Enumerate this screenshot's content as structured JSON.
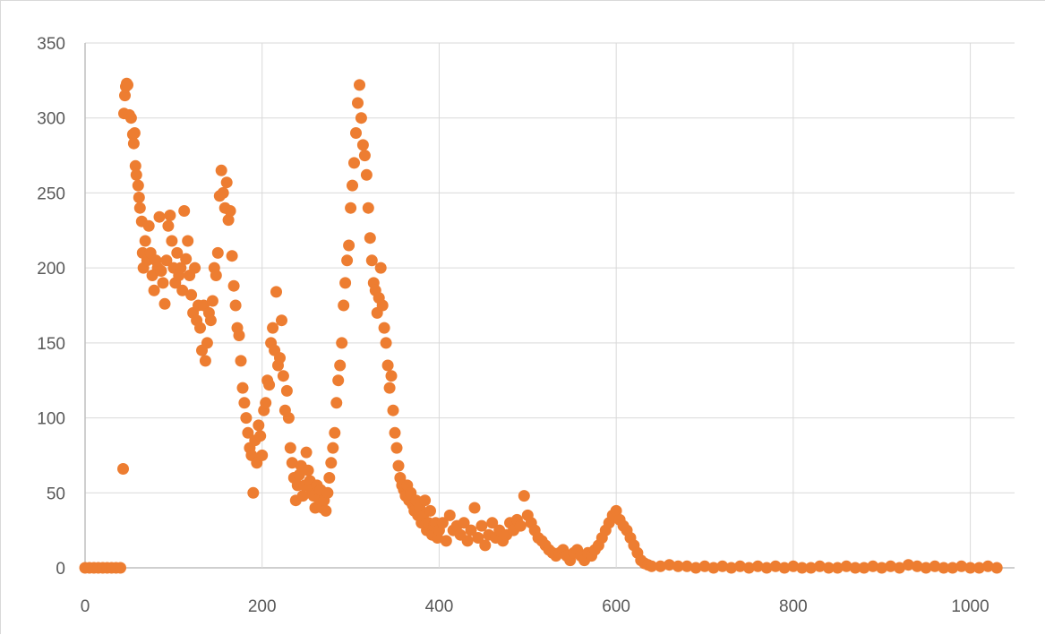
{
  "colors": {
    "marker": "#ED7D31",
    "grid": "#d9d9d9",
    "axis": "#bfbfbf",
    "text": "#595959"
  },
  "chart_data": {
    "type": "scatter",
    "title": "",
    "xlabel": "",
    "ylabel": "",
    "xlim": [
      0,
      1050
    ],
    "ylim": [
      0,
      350
    ],
    "grid": {
      "horizontal": true,
      "vertical": true
    },
    "legend": "none",
    "x_ticks": [
      {
        "value": 0,
        "label": "0"
      },
      {
        "value": 200,
        "label": "200"
      },
      {
        "value": 400,
        "label": "400"
      },
      {
        "value": 600,
        "label": "600"
      },
      {
        "value": 800,
        "label": "800"
      },
      {
        "value": 1000,
        "label": "1000"
      }
    ],
    "y_ticks": [
      {
        "value": 0,
        "label": "0"
      },
      {
        "value": 50,
        "label": "50"
      },
      {
        "value": 100,
        "label": "100"
      },
      {
        "value": 150,
        "label": "150"
      },
      {
        "value": 200,
        "label": "200"
      },
      {
        "value": 250,
        "label": "250"
      },
      {
        "value": 300,
        "label": "300"
      },
      {
        "value": 350,
        "label": "350"
      }
    ],
    "series": [
      {
        "marker_color": "#ED7D31",
        "points": [
          [
            0,
            0
          ],
          [
            5,
            0
          ],
          [
            10,
            0
          ],
          [
            15,
            0
          ],
          [
            20,
            0
          ],
          [
            25,
            0
          ],
          [
            30,
            0
          ],
          [
            35,
            0
          ],
          [
            40,
            0
          ],
          [
            43,
            66
          ],
          [
            44,
            303
          ],
          [
            45,
            315
          ],
          [
            46,
            321
          ],
          [
            47,
            323
          ],
          [
            48,
            322
          ],
          [
            50,
            302
          ],
          [
            52,
            300
          ],
          [
            54,
            289
          ],
          [
            55,
            283
          ],
          [
            56,
            290
          ],
          [
            57,
            268
          ],
          [
            58,
            262
          ],
          [
            60,
            255
          ],
          [
            61,
            247
          ],
          [
            62,
            240
          ],
          [
            64,
            231
          ],
          [
            65,
            210
          ],
          [
            66,
            200
          ],
          [
            68,
            218
          ],
          [
            70,
            205
          ],
          [
            72,
            228
          ],
          [
            74,
            210
          ],
          [
            76,
            195
          ],
          [
            78,
            185
          ],
          [
            80,
            205
          ],
          [
            82,
            200
          ],
          [
            84,
            234
          ],
          [
            86,
            198
          ],
          [
            88,
            190
          ],
          [
            90,
            176
          ],
          [
            92,
            205
          ],
          [
            94,
            228
          ],
          [
            96,
            235
          ],
          [
            98,
            218
          ],
          [
            100,
            200
          ],
          [
            102,
            190
          ],
          [
            104,
            210
          ],
          [
            106,
            195
          ],
          [
            108,
            200
          ],
          [
            110,
            185
          ],
          [
            112,
            238
          ],
          [
            114,
            206
          ],
          [
            116,
            218
          ],
          [
            118,
            195
          ],
          [
            120,
            182
          ],
          [
            122,
            170
          ],
          [
            124,
            200
          ],
          [
            126,
            165
          ],
          [
            128,
            175
          ],
          [
            130,
            160
          ],
          [
            132,
            145
          ],
          [
            134,
            175
          ],
          [
            136,
            138
          ],
          [
            138,
            150
          ],
          [
            140,
            170
          ],
          [
            142,
            165
          ],
          [
            144,
            178
          ],
          [
            146,
            200
          ],
          [
            148,
            195
          ],
          [
            150,
            210
          ],
          [
            152,
            248
          ],
          [
            154,
            265
          ],
          [
            156,
            250
          ],
          [
            158,
            240
          ],
          [
            160,
            257
          ],
          [
            162,
            232
          ],
          [
            164,
            238
          ],
          [
            166,
            208
          ],
          [
            168,
            188
          ],
          [
            170,
            175
          ],
          [
            172,
            160
          ],
          [
            174,
            155
          ],
          [
            176,
            138
          ],
          [
            178,
            120
          ],
          [
            180,
            110
          ],
          [
            182,
            100
          ],
          [
            184,
            90
          ],
          [
            186,
            80
          ],
          [
            188,
            75
          ],
          [
            190,
            50
          ],
          [
            192,
            85
          ],
          [
            194,
            70
          ],
          [
            196,
            95
          ],
          [
            198,
            88
          ],
          [
            200,
            75
          ],
          [
            202,
            105
          ],
          [
            204,
            110
          ],
          [
            206,
            125
          ],
          [
            208,
            122
          ],
          [
            210,
            150
          ],
          [
            212,
            160
          ],
          [
            214,
            145
          ],
          [
            216,
            184
          ],
          [
            218,
            135
          ],
          [
            220,
            140
          ],
          [
            222,
            165
          ],
          [
            224,
            128
          ],
          [
            226,
            105
          ],
          [
            228,
            118
          ],
          [
            230,
            100
          ],
          [
            232,
            80
          ],
          [
            234,
            70
          ],
          [
            236,
            60
          ],
          [
            238,
            45
          ],
          [
            240,
            55
          ],
          [
            242,
            62
          ],
          [
            244,
            68
          ],
          [
            246,
            48
          ],
          [
            248,
            55
          ],
          [
            250,
            77
          ],
          [
            252,
            65
          ],
          [
            254,
            58
          ],
          [
            256,
            52
          ],
          [
            258,
            48
          ],
          [
            260,
            40
          ],
          [
            262,
            55
          ],
          [
            264,
            46
          ],
          [
            266,
            52
          ],
          [
            268,
            40
          ],
          [
            270,
            45
          ],
          [
            272,
            38
          ],
          [
            274,
            50
          ],
          [
            276,
            60
          ],
          [
            278,
            70
          ],
          [
            280,
            80
          ],
          [
            282,
            90
          ],
          [
            284,
            110
          ],
          [
            286,
            125
          ],
          [
            288,
            135
          ],
          [
            290,
            150
          ],
          [
            292,
            175
          ],
          [
            294,
            190
          ],
          [
            296,
            205
          ],
          [
            298,
            215
          ],
          [
            300,
            240
          ],
          [
            302,
            255
          ],
          [
            304,
            270
          ],
          [
            306,
            290
          ],
          [
            308,
            310
          ],
          [
            310,
            322
          ],
          [
            312,
            300
          ],
          [
            314,
            282
          ],
          [
            316,
            275
          ],
          [
            318,
            262
          ],
          [
            320,
            240
          ],
          [
            322,
            220
          ],
          [
            324,
            205
          ],
          [
            326,
            190
          ],
          [
            328,
            185
          ],
          [
            330,
            170
          ],
          [
            332,
            180
          ],
          [
            334,
            200
          ],
          [
            336,
            175
          ],
          [
            338,
            160
          ],
          [
            340,
            150
          ],
          [
            342,
            135
          ],
          [
            344,
            120
          ],
          [
            346,
            128
          ],
          [
            348,
            105
          ],
          [
            350,
            90
          ],
          [
            352,
            80
          ],
          [
            354,
            68
          ],
          [
            356,
            60
          ],
          [
            358,
            55
          ],
          [
            360,
            52
          ],
          [
            362,
            48
          ],
          [
            364,
            55
          ],
          [
            366,
            45
          ],
          [
            368,
            50
          ],
          [
            370,
            42
          ],
          [
            372,
            38
          ],
          [
            374,
            45
          ],
          [
            376,
            35
          ],
          [
            378,
            40
          ],
          [
            380,
            30
          ],
          [
            382,
            35
          ],
          [
            384,
            45
          ],
          [
            386,
            25
          ],
          [
            388,
            30
          ],
          [
            390,
            38
          ],
          [
            392,
            22
          ],
          [
            394,
            28
          ],
          [
            396,
            30
          ],
          [
            398,
            20
          ],
          [
            400,
            25
          ],
          [
            404,
            30
          ],
          [
            408,
            18
          ],
          [
            412,
            35
          ],
          [
            416,
            25
          ],
          [
            420,
            28
          ],
          [
            424,
            22
          ],
          [
            428,
            30
          ],
          [
            432,
            18
          ],
          [
            436,
            25
          ],
          [
            440,
            40
          ],
          [
            444,
            20
          ],
          [
            448,
            28
          ],
          [
            452,
            15
          ],
          [
            456,
            22
          ],
          [
            460,
            30
          ],
          [
            464,
            20
          ],
          [
            468,
            25
          ],
          [
            472,
            18
          ],
          [
            476,
            22
          ],
          [
            480,
            30
          ],
          [
            484,
            25
          ],
          [
            488,
            32
          ],
          [
            492,
            28
          ],
          [
            496,
            48
          ],
          [
            500,
            35
          ],
          [
            504,
            30
          ],
          [
            508,
            25
          ],
          [
            512,
            20
          ],
          [
            516,
            18
          ],
          [
            520,
            15
          ],
          [
            524,
            12
          ],
          [
            528,
            10
          ],
          [
            532,
            8
          ],
          [
            536,
            10
          ],
          [
            540,
            12
          ],
          [
            544,
            8
          ],
          [
            548,
            5
          ],
          [
            552,
            10
          ],
          [
            556,
            12
          ],
          [
            560,
            8
          ],
          [
            564,
            5
          ],
          [
            568,
            10
          ],
          [
            572,
            8
          ],
          [
            576,
            12
          ],
          [
            580,
            15
          ],
          [
            584,
            20
          ],
          [
            588,
            25
          ],
          [
            592,
            30
          ],
          [
            596,
            35
          ],
          [
            600,
            38
          ],
          [
            604,
            32
          ],
          [
            608,
            28
          ],
          [
            612,
            25
          ],
          [
            616,
            20
          ],
          [
            620,
            15
          ],
          [
            624,
            10
          ],
          [
            628,
            5
          ],
          [
            632,
            3
          ],
          [
            636,
            2
          ],
          [
            640,
            1
          ],
          [
            650,
            1
          ],
          [
            660,
            2
          ],
          [
            670,
            1
          ],
          [
            680,
            1
          ],
          [
            690,
            0
          ],
          [
            700,
            1
          ],
          [
            710,
            0
          ],
          [
            720,
            1
          ],
          [
            730,
            0
          ],
          [
            740,
            1
          ],
          [
            750,
            0
          ],
          [
            760,
            1
          ],
          [
            770,
            0
          ],
          [
            780,
            1
          ],
          [
            790,
            0
          ],
          [
            800,
            1
          ],
          [
            810,
            0
          ],
          [
            820,
            0
          ],
          [
            830,
            1
          ],
          [
            840,
            0
          ],
          [
            850,
            0
          ],
          [
            860,
            1
          ],
          [
            870,
            0
          ],
          [
            880,
            0
          ],
          [
            890,
            1
          ],
          [
            900,
            0
          ],
          [
            910,
            1
          ],
          [
            920,
            0
          ],
          [
            930,
            2
          ],
          [
            940,
            1
          ],
          [
            950,
            0
          ],
          [
            960,
            1
          ],
          [
            970,
            0
          ],
          [
            980,
            0
          ],
          [
            990,
            1
          ],
          [
            1000,
            0
          ],
          [
            1010,
            0
          ],
          [
            1020,
            1
          ],
          [
            1030,
            0
          ]
        ]
      }
    ]
  }
}
